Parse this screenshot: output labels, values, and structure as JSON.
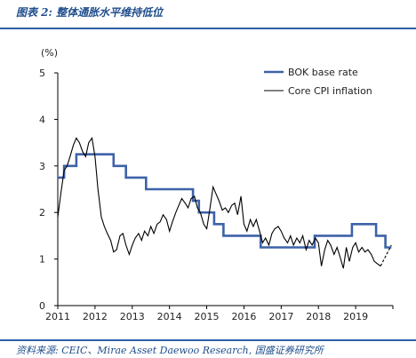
{
  "header": {
    "title": "图表 2: 整体通胀水平维持低位"
  },
  "footer": {
    "source": "资料来源: CEIC、Mirae Asset Daewoo Research, 国盛证券研究所"
  },
  "colors": {
    "bok_line": "#3d62a8",
    "cpi_line": "#000000",
    "rule": "#2e5fa8",
    "title_text": "#1f4e8c"
  },
  "chart_data": {
    "type": "line",
    "y_unit_label": "(%)",
    "xlim": [
      2011.0,
      2020.0
    ],
    "ylim": [
      0,
      5
    ],
    "x_ticks": [
      2011,
      2012,
      2013,
      2014,
      2015,
      2016,
      2017,
      2018,
      2019
    ],
    "y_ticks": [
      0,
      1,
      2,
      3,
      4,
      5
    ],
    "grid": false,
    "legend_position": "top-right",
    "series": [
      {
        "name": "BOK base rate",
        "color": "#3d62a8",
        "style": "step",
        "points": [
          [
            2011.0,
            2.75
          ],
          [
            2011.17,
            3.0
          ],
          [
            2011.5,
            3.25
          ],
          [
            2012.5,
            3.0
          ],
          [
            2012.83,
            2.75
          ],
          [
            2013.37,
            2.5
          ],
          [
            2014.63,
            2.25
          ],
          [
            2014.79,
            2.0
          ],
          [
            2015.2,
            1.75
          ],
          [
            2015.45,
            1.5
          ],
          [
            2016.45,
            1.25
          ],
          [
            2017.9,
            1.5
          ],
          [
            2018.9,
            1.75
          ],
          [
            2019.55,
            1.5
          ],
          [
            2019.8,
            1.25
          ],
          [
            2019.96,
            1.25
          ]
        ]
      },
      {
        "name": "Core CPI inflation",
        "color": "#000000",
        "style": "line",
        "solid": [
          [
            2011.0,
            1.9
          ],
          [
            2011.08,
            2.4
          ],
          [
            2011.17,
            2.9
          ],
          [
            2011.25,
            3.0
          ],
          [
            2011.33,
            3.2
          ],
          [
            2011.42,
            3.45
          ],
          [
            2011.5,
            3.6
          ],
          [
            2011.58,
            3.5
          ],
          [
            2011.67,
            3.3
          ],
          [
            2011.75,
            3.2
          ],
          [
            2011.83,
            3.5
          ],
          [
            2011.92,
            3.6
          ],
          [
            2012.0,
            3.2
          ],
          [
            2012.08,
            2.5
          ],
          [
            2012.17,
            1.9
          ],
          [
            2012.25,
            1.7
          ],
          [
            2012.33,
            1.55
          ],
          [
            2012.42,
            1.4
          ],
          [
            2012.5,
            1.15
          ],
          [
            2012.58,
            1.2
          ],
          [
            2012.67,
            1.5
          ],
          [
            2012.75,
            1.55
          ],
          [
            2012.83,
            1.3
          ],
          [
            2012.92,
            1.1
          ],
          [
            2013.0,
            1.3
          ],
          [
            2013.08,
            1.45
          ],
          [
            2013.17,
            1.55
          ],
          [
            2013.25,
            1.4
          ],
          [
            2013.33,
            1.6
          ],
          [
            2013.42,
            1.5
          ],
          [
            2013.5,
            1.7
          ],
          [
            2013.58,
            1.55
          ],
          [
            2013.67,
            1.75
          ],
          [
            2013.75,
            1.8
          ],
          [
            2013.83,
            1.95
          ],
          [
            2013.92,
            1.85
          ],
          [
            2014.0,
            1.6
          ],
          [
            2014.08,
            1.8
          ],
          [
            2014.17,
            2.0
          ],
          [
            2014.25,
            2.15
          ],
          [
            2014.33,
            2.3
          ],
          [
            2014.42,
            2.2
          ],
          [
            2014.5,
            2.1
          ],
          [
            2014.58,
            2.3
          ],
          [
            2014.67,
            2.35
          ],
          [
            2014.75,
            2.1
          ],
          [
            2014.83,
            2.0
          ],
          [
            2014.92,
            1.75
          ],
          [
            2015.0,
            1.65
          ],
          [
            2015.08,
            2.05
          ],
          [
            2015.17,
            2.55
          ],
          [
            2015.25,
            2.4
          ],
          [
            2015.33,
            2.25
          ],
          [
            2015.42,
            2.05
          ],
          [
            2015.5,
            2.1
          ],
          [
            2015.58,
            2.0
          ],
          [
            2015.67,
            2.15
          ],
          [
            2015.75,
            2.2
          ],
          [
            2015.83,
            1.95
          ],
          [
            2015.92,
            2.35
          ],
          [
            2016.0,
            1.75
          ],
          [
            2016.08,
            1.6
          ],
          [
            2016.17,
            1.85
          ],
          [
            2016.25,
            1.7
          ],
          [
            2016.33,
            1.85
          ],
          [
            2016.42,
            1.6
          ],
          [
            2016.5,
            1.35
          ],
          [
            2016.58,
            1.45
          ],
          [
            2016.67,
            1.3
          ],
          [
            2016.75,
            1.55
          ],
          [
            2016.83,
            1.65
          ],
          [
            2016.92,
            1.7
          ],
          [
            2017.0,
            1.6
          ],
          [
            2017.08,
            1.45
          ],
          [
            2017.17,
            1.35
          ],
          [
            2017.25,
            1.5
          ],
          [
            2017.33,
            1.3
          ],
          [
            2017.42,
            1.45
          ],
          [
            2017.5,
            1.35
          ],
          [
            2017.58,
            1.5
          ],
          [
            2017.67,
            1.2
          ],
          [
            2017.75,
            1.4
          ],
          [
            2017.83,
            1.3
          ],
          [
            2017.92,
            1.45
          ],
          [
            2018.0,
            1.35
          ],
          [
            2018.08,
            0.85
          ],
          [
            2018.17,
            1.2
          ],
          [
            2018.25,
            1.4
          ],
          [
            2018.33,
            1.3
          ],
          [
            2018.42,
            1.1
          ],
          [
            2018.5,
            1.25
          ],
          [
            2018.58,
            1.05
          ],
          [
            2018.67,
            0.8
          ],
          [
            2018.75,
            1.25
          ],
          [
            2018.83,
            0.95
          ],
          [
            2018.92,
            1.25
          ],
          [
            2019.0,
            1.35
          ],
          [
            2019.08,
            1.15
          ],
          [
            2019.17,
            1.25
          ],
          [
            2019.25,
            1.15
          ],
          [
            2019.33,
            1.2
          ],
          [
            2019.42,
            1.1
          ],
          [
            2019.5,
            0.95
          ],
          [
            2019.58,
            0.9
          ],
          [
            2019.67,
            0.85
          ]
        ],
        "dashed": [
          [
            2019.67,
            0.85
          ],
          [
            2019.83,
            1.1
          ],
          [
            2019.96,
            1.3
          ]
        ]
      }
    ]
  }
}
